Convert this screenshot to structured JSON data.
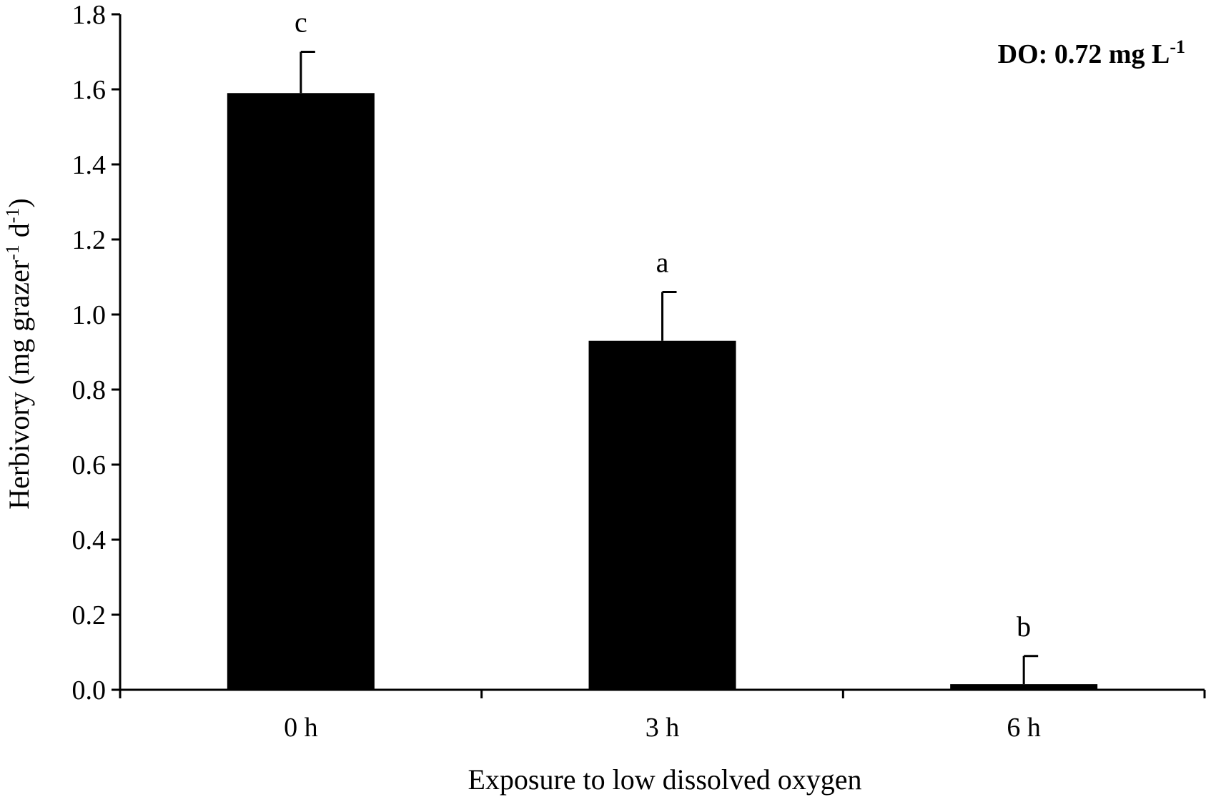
{
  "chart_data": {
    "type": "bar",
    "categories": [
      "0 h",
      "3 h",
      "6 h"
    ],
    "series": [
      {
        "values": [
          1.59,
          0.93,
          0.015
        ],
        "error_upper": [
          0.11,
          0.13,
          0.075
        ],
        "significance": [
          "c",
          "a",
          "b"
        ],
        "color": "#000000"
      }
    ],
    "xlabel": "Exposure to low dissolved oxygen",
    "ylabel": {
      "prefix": "Herbivory (mg grazer",
      "sup1": "-1",
      "middle": " d",
      "sup2": "-1",
      "suffix": ")"
    },
    "ylim": [
      0,
      1.8
    ],
    "yticks": [
      "0.0",
      "0.2",
      "0.4",
      "0.6",
      "0.8",
      "1.0",
      "1.2",
      "1.4",
      "1.6",
      "1.8"
    ],
    "annotation": {
      "text": "DO: 0.72 mg L",
      "sup": "-1"
    },
    "grid": false,
    "legend": "none"
  }
}
